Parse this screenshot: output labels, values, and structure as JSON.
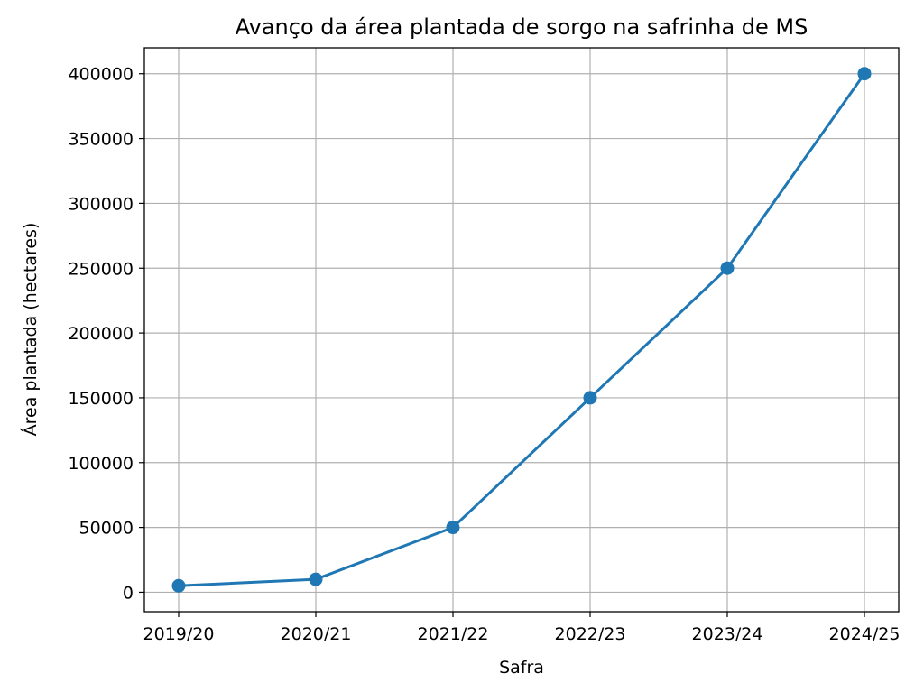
{
  "chart_data": {
    "type": "line",
    "title": "Avanço da área plantada de sorgo na safrinha de MS",
    "xlabel": "Safra",
    "ylabel": "Área plantada (hectares)",
    "categories": [
      "2019/20",
      "2020/21",
      "2021/22",
      "2022/23",
      "2023/24",
      "2024/25"
    ],
    "series": [
      {
        "values": [
          5000,
          10000,
          50000,
          150000,
          250000,
          400000
        ]
      }
    ],
    "yticks": [
      0,
      50000,
      100000,
      150000,
      200000,
      250000,
      300000,
      350000,
      400000
    ],
    "ylim": [
      -15000,
      420000
    ],
    "grid": true,
    "marker": "circle",
    "colors": {
      "line": "#1f77b4",
      "grid": "#b0b0b0",
      "axes": "#000000"
    }
  }
}
